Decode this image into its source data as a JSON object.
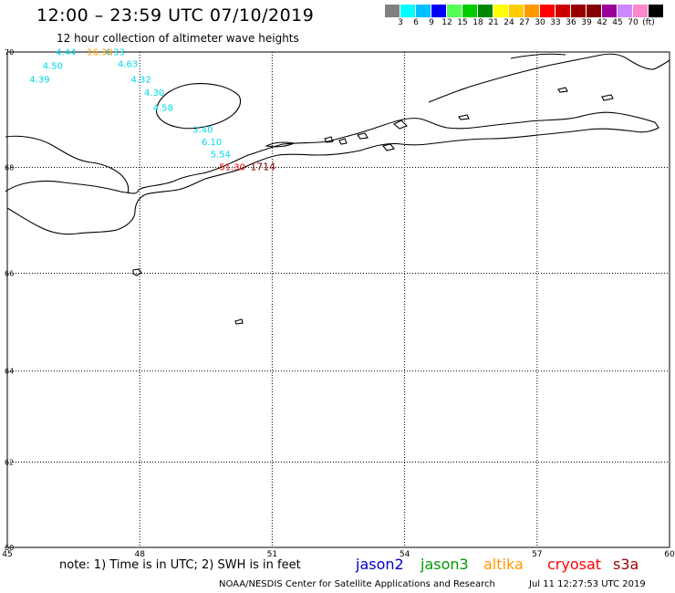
{
  "header": {
    "title": "12:00 – 23:59 UTC 07/10/2019",
    "subtitle": "12 hour collection of altimeter wave heights"
  },
  "color_scale": {
    "colors": [
      "#808080",
      "#00ffff",
      "#00bfff",
      "#0000ff",
      "#55ff55",
      "#00cc00",
      "#008800",
      "#ffff00",
      "#ffcc00",
      "#ff9900",
      "#ff0000",
      "#cc0000",
      "#990000",
      "#880000",
      "#990099",
      "#cc88ff",
      "#ff88cc",
      "#000000"
    ],
    "labels": [
      "3",
      "6",
      "9",
      "12",
      "15",
      "18",
      "21",
      "24",
      "27",
      "30",
      "33",
      "36",
      "39",
      "42",
      "45",
      "70",
      "(ft)"
    ]
  },
  "map": {
    "lon_labels": [
      "45",
      "48",
      "51",
      "54",
      "57",
      "60"
    ],
    "lat_labels": [
      "70",
      "68",
      "66",
      "64",
      "62",
      "60"
    ],
    "observations": [
      {
        "text": "4.44",
        "lon": 46.1,
        "lat": 69.95,
        "color": "#00d8e8"
      },
      {
        "text": "4.50",
        "lon": 45.8,
        "lat": 69.72,
        "color": "#00d8e8"
      },
      {
        "text": "4.39",
        "lon": 45.5,
        "lat": 69.49,
        "color": "#00d8e8"
      },
      {
        "text": "4.63",
        "lon": 47.5,
        "lat": 69.75,
        "color": "#00d8e8"
      },
      {
        "text": "4.32",
        "lon": 47.8,
        "lat": 69.49,
        "color": "#00d8e8"
      },
      {
        "text": "4.30",
        "lon": 48.1,
        "lat": 69.26,
        "color": "#00d8e8"
      },
      {
        "text": "4.58",
        "lon": 48.3,
        "lat": 69.0,
        "color": "#00d8e8"
      },
      {
        "text": "3.40",
        "lon": 49.2,
        "lat": 68.62,
        "color": "#00d8e8"
      },
      {
        "text": "6.10",
        "lon": 49.4,
        "lat": 68.4,
        "color": "#00d8e8"
      },
      {
        "text": "5.54",
        "lon": 49.6,
        "lat": 68.18,
        "color": "#00d8e8"
      },
      {
        "text": "4.33",
        "lon": 47.2,
        "lat": 69.95,
        "color": "#00d8e8"
      },
      {
        "text": "16.30",
        "lon": 46.8,
        "lat": 69.95,
        "color": "#ff9900"
      },
      {
        "text": "51.30",
        "lon": 49.8,
        "lat": 67.95,
        "color": "#ff0000"
      },
      {
        "text": "1714",
        "lon": 50.5,
        "lat": 67.95,
        "color": "#800000"
      }
    ]
  },
  "footer": {
    "note": "note: 1) Time is in UTC; 2) SWH is in feet",
    "satellites": [
      {
        "name": "jason2",
        "color": "#0000cc"
      },
      {
        "name": "jason3",
        "color": "#009900"
      },
      {
        "name": "altika",
        "color": "#ff9900"
      },
      {
        "name": "cryosat",
        "color": "#ff0000"
      },
      {
        "name": "s3a",
        "color": "#990000"
      }
    ],
    "credit": "NOAA/NESDIS Center for Satellite Applications and Research",
    "timestamp": "Jul 11 12:27:53 UTC 2019"
  }
}
